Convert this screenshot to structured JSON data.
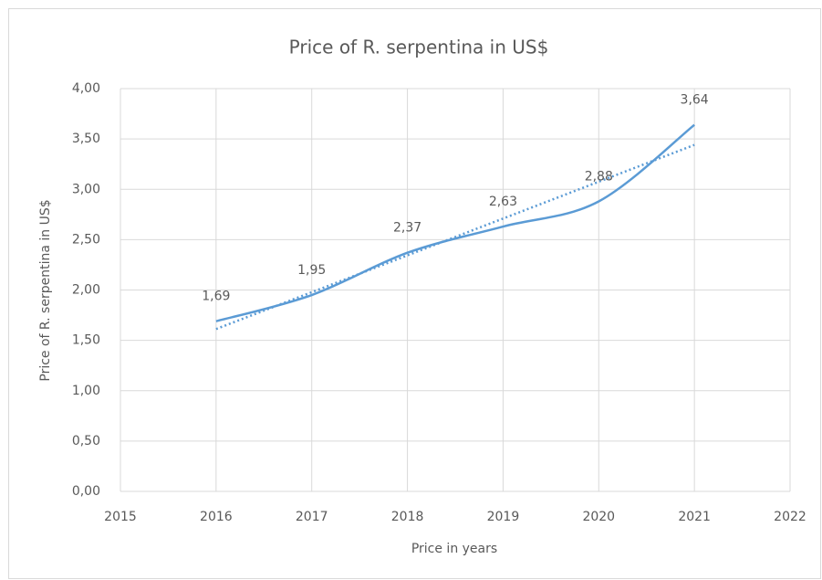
{
  "chart_data": {
    "type": "line",
    "title": "Price of R. serpentina in US$",
    "x_label": "Price in years",
    "y_label": "Price of R. serpentina in US$",
    "x": [
      2016,
      2017,
      2018,
      2019,
      2020,
      2021
    ],
    "series": [
      {
        "color": "#5b9bd5",
        "values": [
          1.69,
          1.95,
          2.37,
          2.63,
          2.88,
          3.64
        ],
        "value_labels": [
          "1,69",
          "1,95",
          "2,37",
          "2,63",
          "2,88",
          "3,64"
        ]
      }
    ],
    "trendline": "linear",
    "smooth": true,
    "xlim": [
      2015,
      2022
    ],
    "xticks": [
      2015,
      2016,
      2017,
      2018,
      2019,
      2020,
      2021,
      2022
    ],
    "ylim": [
      0,
      4
    ],
    "yticks": [
      {
        "value": 0,
        "label": "0,00"
      },
      {
        "value": 0.5,
        "label": "0,50"
      },
      {
        "value": 1,
        "label": "1,00"
      },
      {
        "value": 1.5,
        "label": "1,50"
      },
      {
        "value": 2,
        "label": "2,00"
      },
      {
        "value": 2.5,
        "label": "2,50"
      },
      {
        "value": 3,
        "label": "3,00"
      },
      {
        "value": 3.5,
        "label": "3,50"
      },
      {
        "value": 4,
        "label": "4,00"
      }
    ],
    "grid": true
  }
}
